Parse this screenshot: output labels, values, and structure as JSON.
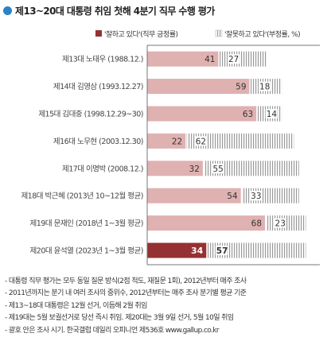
{
  "title": "제13~20대 대통령 취임 첫해 4분기 직무 수행 평가",
  "colors": {
    "title_dot": "#2a83c5",
    "positive": "#e0b1b1",
    "positive_highlight": "#953133",
    "negative_stripe": "#9a9a9a",
    "label_text": "#444444",
    "value_text": "#333333",
    "highlight_value_text": "#ffffff",
    "frame": "#777777",
    "gap": "#ffffff"
  },
  "chart_data": {
    "type": "bar",
    "orientation": "horizontal",
    "stacked": true,
    "categories": [
      "제13대 노태우 (1988.12.)",
      "제14대 김영삼 (1993.12.27)",
      "제15대 김대중 (1998.12.29~30)",
      "제16대 노무현 (2003.12.30)",
      "제17대 이명박 (2008.12.)",
      "제18대 박근혜 (2013년 10~12월 평균)",
      "제19대 문재인 (2018년 1~3월 평균)",
      "제20대 윤석열 (2023년 1~3월 평균)"
    ],
    "series": [
      {
        "name": "'잘하고 있다'(직무 긍정률)",
        "values": [
          41,
          59,
          63,
          22,
          32,
          54,
          68,
          34
        ]
      },
      {
        "name": "'잘못하고 있다'(부정률, %)",
        "values": [
          27,
          18,
          14,
          62,
          55,
          33,
          23,
          57
        ]
      }
    ],
    "highlight_index": 7,
    "xlim": [
      0,
      100
    ],
    "legend_position": "top-right",
    "grid": false
  },
  "notes": [
    "- 대통령 직무 평가는 모두 동일 질문 방식(2점 척도, 재질문 1회), 2012년부터 매주 조사",
    "- 2011년까지는 분기 내 여러 조사의 중위수, 2012년부터는 매주 조사 분기별 평균 기준",
    "- 제13~18대 대통령은 12월 선거, 이듬해 2월 취임",
    "- 제19대는 5월 보궐선거로 당선 즉시 취임. 제20대는 3월 9일 선거, 5월 10일 취임",
    "- 괄호 안은 조사 시기. 한국갤럽 데일리 오피니언 제536호 www.gallup.co.kr"
  ]
}
